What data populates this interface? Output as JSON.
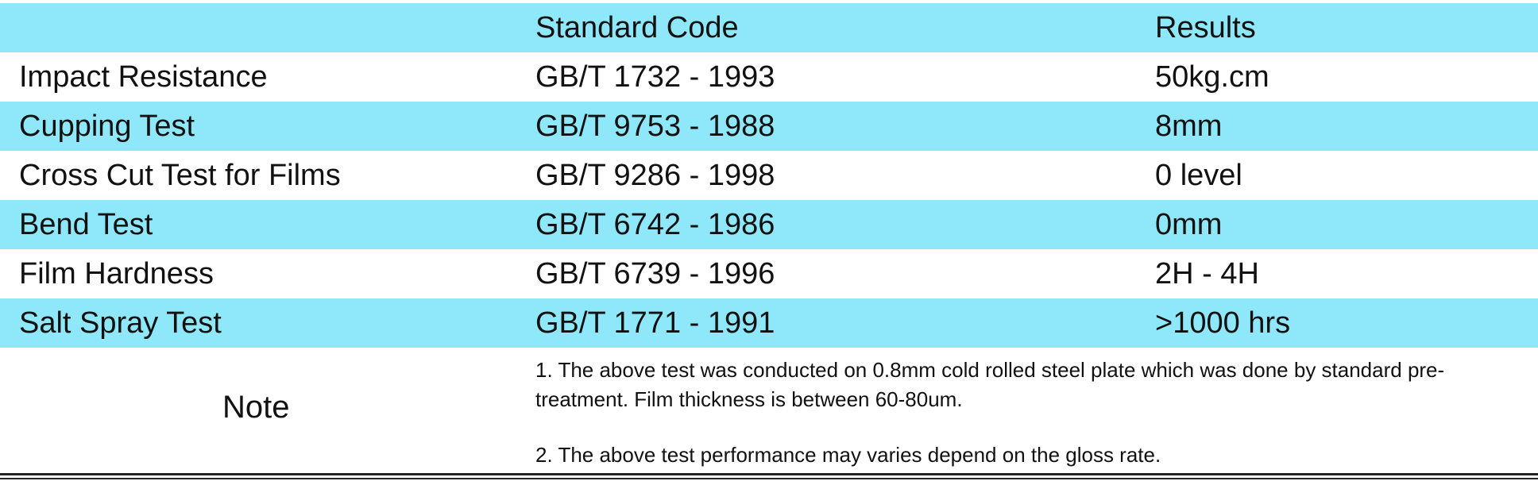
{
  "header": {
    "col1": "",
    "col2": "Standard Code",
    "col3": "Results"
  },
  "rows": [
    {
      "test": "Impact Resistance",
      "code": "GB/T 1732 - 1993",
      "result": "50kg.cm"
    },
    {
      "test": "Cupping Test",
      "code": "GB/T 9753 - 1988",
      "result": "8mm"
    },
    {
      "test": "Cross Cut Test for Films",
      "code": "GB/T 9286 - 1998",
      "result": "0 level"
    },
    {
      "test": "Bend Test",
      "code": "GB/T 6742 - 1986",
      "result": "0mm"
    },
    {
      "test": "Film Hardness",
      "code": "GB/T 6739 - 1996",
      "result": "2H - 4H"
    },
    {
      "test": "Salt Spray Test",
      "code": "GB/T 1771 - 1991",
      "result": ">1000 hrs"
    }
  ],
  "note": {
    "label": "Note",
    "lines": [
      "1. The above test was conducted on 0.8mm cold rolled steel plate which was done by standard pre-treatment. Film thickness is between 60-80um.",
      "2. The above test performance may varies depend on the gloss rate."
    ]
  },
  "colors": {
    "shaded_row": "#8fe8fa",
    "plain_row": "#ffffff",
    "text": "#111111"
  }
}
